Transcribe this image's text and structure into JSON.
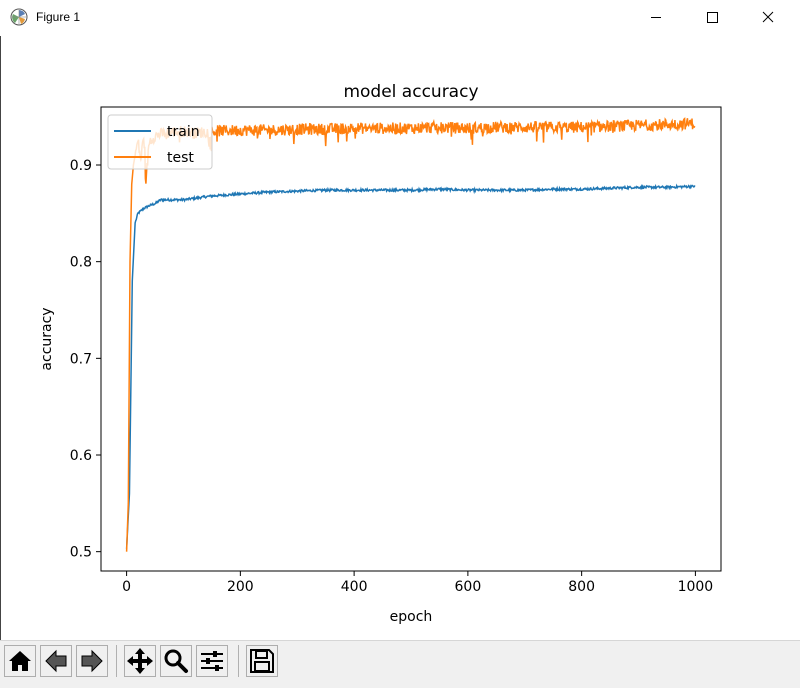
{
  "window": {
    "title": "Figure 1"
  },
  "chart_data": {
    "type": "line",
    "title": "model accuracy",
    "xlabel": "epoch",
    "ylabel": "accuracy",
    "xlim": [
      -45,
      1045
    ],
    "ylim": [
      0.48,
      0.96
    ],
    "xticks": [
      0,
      200,
      400,
      600,
      800,
      1000
    ],
    "xticklabels": [
      "0",
      "200",
      "400",
      "600",
      "800",
      "1000"
    ],
    "yticks": [
      0.5,
      0.6,
      0.7,
      0.8,
      0.9
    ],
    "yticklabels": [
      "0.5",
      "0.6",
      "0.7",
      "0.8",
      "0.9"
    ],
    "grid": false,
    "legend_position": "upper-left",
    "series": [
      {
        "name": "train",
        "color": "#1f77b4",
        "x": [
          0,
          5,
          10,
          15,
          20,
          30,
          40,
          50,
          60,
          80,
          100,
          150,
          200,
          250,
          300,
          350,
          400,
          450,
          500,
          550,
          600,
          650,
          700,
          750,
          800,
          850,
          900,
          950,
          999
        ],
        "y": [
          0.503,
          0.56,
          0.78,
          0.84,
          0.85,
          0.855,
          0.858,
          0.86,
          0.864,
          0.864,
          0.864,
          0.868,
          0.87,
          0.872,
          0.873,
          0.874,
          0.874,
          0.874,
          0.874,
          0.875,
          0.874,
          0.874,
          0.874,
          0.875,
          0.875,
          0.876,
          0.877,
          0.877,
          0.878
        ]
      },
      {
        "name": "test",
        "color": "#ff7f0e",
        "x": [
          0,
          3,
          6,
          9,
          12,
          15,
          20,
          25,
          30,
          35,
          40,
          50,
          60,
          80,
          100,
          120,
          150,
          200,
          250,
          300,
          350,
          400,
          450,
          500,
          550,
          600,
          650,
          700,
          750,
          800,
          850,
          900,
          950,
          999
        ],
        "y": [
          0.5,
          0.55,
          0.8,
          0.88,
          0.9,
          0.91,
          0.925,
          0.905,
          0.93,
          0.89,
          0.925,
          0.93,
          0.932,
          0.934,
          0.935,
          0.933,
          0.935,
          0.936,
          0.936,
          0.937,
          0.937,
          0.938,
          0.938,
          0.938,
          0.939,
          0.938,
          0.939,
          0.939,
          0.939,
          0.939,
          0.94,
          0.941,
          0.942,
          0.943
        ]
      }
    ]
  },
  "toolbar": {
    "buttons": [
      {
        "name": "home",
        "icon": "home-icon"
      },
      {
        "name": "back",
        "icon": "arrow-left-icon"
      },
      {
        "name": "forward",
        "icon": "arrow-right-icon"
      },
      {
        "name": "pan",
        "icon": "move-icon"
      },
      {
        "name": "zoom",
        "icon": "magnifier-icon"
      },
      {
        "name": "configure-subplots",
        "icon": "sliders-icon"
      },
      {
        "name": "save",
        "icon": "floppy-disk-icon"
      }
    ]
  }
}
